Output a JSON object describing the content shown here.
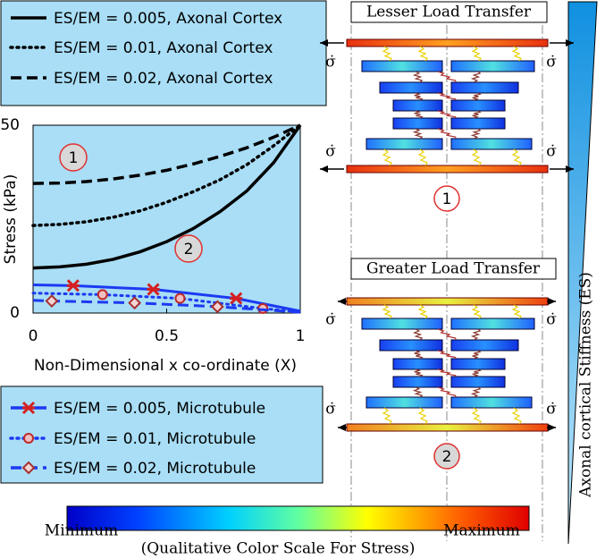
{
  "chart_data": {
    "type": "line",
    "ylabel": "Stress (kPa)",
    "xlabel": "Non-Dimensional x co-ordinate (X)",
    "xlim": [
      0,
      1
    ],
    "xticks": [
      0,
      0.5,
      1
    ],
    "ylim": [
      0,
      50
    ],
    "yticks": [
      0,
      50
    ],
    "background": "#a9def6",
    "annotations": [
      "1",
      "2"
    ],
    "series": [
      {
        "name": "ES/EM = 0.005, Axonal Cortex",
        "color": "#000000",
        "dash": "solid",
        "legend": "top",
        "x": [
          0,
          0.1,
          0.2,
          0.3,
          0.4,
          0.5,
          0.6,
          0.7,
          0.8,
          0.9,
          1
        ],
        "values": [
          12,
          12.3,
          13,
          14.3,
          16.3,
          19,
          22.5,
          27,
          32.5,
          40,
          50
        ]
      },
      {
        "name": "ES/EM = 0.01, Axonal Cortex",
        "color": "#000000",
        "dash": "dotted",
        "legend": "top",
        "x": [
          0,
          0.1,
          0.2,
          0.3,
          0.4,
          0.5,
          0.6,
          0.7,
          0.8,
          0.9,
          1
        ],
        "values": [
          23.3,
          23.6,
          24.3,
          25.5,
          27.2,
          29.5,
          32.3,
          35.5,
          39.5,
          44.5,
          50
        ]
      },
      {
        "name": "ES/EM = 0.02, Axonal Cortex",
        "color": "#000000",
        "dash": "dashed",
        "legend": "top",
        "x": [
          0,
          0.1,
          0.2,
          0.3,
          0.4,
          0.5,
          0.6,
          0.7,
          0.8,
          0.9,
          1
        ],
        "values": [
          34.5,
          34.6,
          35,
          35.7,
          36.7,
          38,
          39.7,
          41.7,
          44,
          46.8,
          50
        ]
      },
      {
        "name": "ES/EM = 0.005, Microtubule",
        "color": "#1c3af2",
        "dash": "solid",
        "marker": "star",
        "marker_color": "#d42020",
        "legend": "bottom",
        "x": [
          0,
          0.15,
          0.45,
          0.76,
          1
        ],
        "values": [
          7.5,
          7.3,
          6.3,
          3.9,
          0.5
        ]
      },
      {
        "name": "ES/EM = 0.01, Microtubule",
        "color": "#1c3af2",
        "dash": "dotted",
        "marker": "circle",
        "marker_color": "#c02828",
        "legend": "bottom",
        "x": [
          0,
          0.26,
          0.55,
          0.86,
          1
        ],
        "values": [
          5.3,
          4.9,
          3.9,
          1.2,
          0.3
        ]
      },
      {
        "name": "ES/EM = 0.02, Microtubule",
        "color": "#1c3af2",
        "dash": "dashed",
        "marker": "diamond",
        "marker_color": "#a83030",
        "legend": "bottom",
        "x": [
          0,
          0.07,
          0.38,
          0.69,
          1
        ],
        "values": [
          3.4,
          3.2,
          2.7,
          1.7,
          0.2
        ]
      }
    ]
  },
  "diagram": {
    "top_title": "Lesser Load Transfer",
    "bottom_title": "Greater Load Transfer",
    "top_case": "1",
    "bottom_case": "2",
    "stress_rate_labels": [
      "σ̇",
      "σ̇",
      "σ̇",
      "σ̇",
      "σ̇",
      "σ̇",
      "σ̇",
      "σ̇"
    ],
    "stiffness_label": "Axonal cortical Stiffness (ES)"
  },
  "colorbar": {
    "min_label": "Minimum",
    "max_label": "Maximum",
    "caption": "(Qualitative Color Scale For Stress)"
  }
}
